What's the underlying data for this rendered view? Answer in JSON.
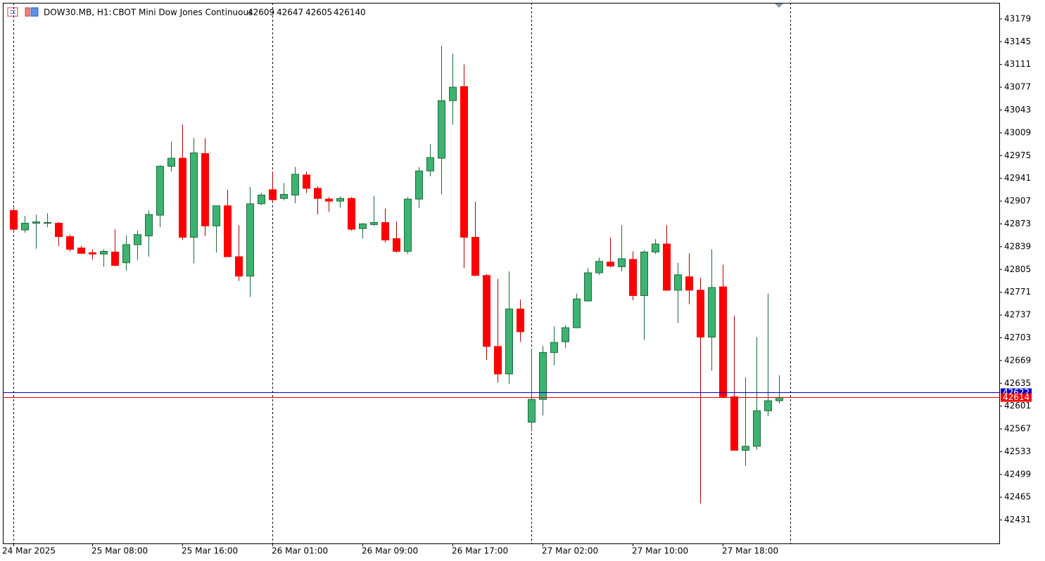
{
  "chart_data": {
    "type": "candlestick",
    "title": "DOW30.MB, H1:",
    "subtitle": "CBOT Mini Dow Jones Continuous",
    "header_values": [
      42609,
      42647,
      42605,
      42614,
      0
    ],
    "categories": [
      "24 Mar 2025",
      null,
      null,
      null,
      null,
      null,
      null,
      "25 Mar 08:00",
      null,
      null,
      null,
      null,
      null,
      null,
      null,
      "25 Mar 16:00",
      null,
      null,
      null,
      null,
      null,
      null,
      null,
      "26 Mar 01:00",
      null,
      null,
      null,
      null,
      null,
      null,
      null,
      "26 Mar 09:00",
      null,
      null,
      null,
      null,
      null,
      null,
      null,
      "26 Mar 17:00",
      null,
      null,
      null,
      null,
      null,
      null,
      null,
      "27 Mar 02:00",
      null,
      null,
      null,
      null,
      null,
      null,
      null,
      "27 Mar 10:00",
      null,
      null,
      null,
      null,
      null,
      null,
      null,
      "27 Mar 18:00",
      null,
      null,
      null,
      null,
      null
    ],
    "open": [
      42893,
      42864,
      42874,
      42874,
      42874,
      42854,
      42837,
      42830,
      42828,
      42831,
      42815,
      42842,
      42855,
      42886,
      42959,
      42971,
      42853,
      42978,
      42870,
      42900,
      42824,
      42795,
      42903,
      42924,
      42911,
      42916,
      42946,
      42926,
      42910,
      42907,
      42911,
      42866,
      42872,
      42875,
      42851,
      42832,
      42910,
      42952,
      42971,
      43057,
      43078,
      42853,
      42796,
      42690,
      42649,
      42746,
      42577,
      42611,
      42681,
      42697,
      42718,
      42758,
      42800,
      42816,
      42809,
      42820,
      42766,
      42831,
      42843,
      42774,
      42794,
      42774,
      42704,
      42779,
      42615,
      42535,
      42541,
      42594,
      42609
    ],
    "high": [
      42897,
      42885,
      42887,
      42889,
      42876,
      42857,
      42840,
      42835,
      42835,
      42865,
      42856,
      42863,
      42893,
      42961,
      42996,
      43021,
      43001,
      43001,
      42900,
      42924,
      42871,
      42928,
      42919,
      42951,
      42934,
      42958,
      42951,
      42929,
      42913,
      42914,
      42913,
      42874,
      42915,
      42896,
      42877,
      42913,
      42958,
      42992,
      43139,
      43127,
      43111,
      42906,
      42798,
      42791,
      42802,
      42760,
      42686,
      42691,
      42720,
      42722,
      42769,
      42807,
      42823,
      42853,
      42871,
      42832,
      42834,
      42850,
      42871,
      42815,
      42829,
      42793,
      42835,
      42812,
      42736,
      42644,
      42704,
      42769,
      42647
    ],
    "low": [
      42861,
      42860,
      42836,
      42868,
      42840,
      42832,
      42828,
      42820,
      42809,
      42810,
      42803,
      42819,
      42824,
      42868,
      42951,
      42849,
      42814,
      42855,
      42830,
      42824,
      42788,
      42764,
      42901,
      42905,
      42908,
      42904,
      42919,
      42887,
      42891,
      42897,
      42863,
      42851,
      42870,
      42845,
      42830,
      42828,
      42897,
      42944,
      42917,
      43021,
      42807,
      42795,
      42670,
      42636,
      42634,
      42697,
      42565,
      42587,
      42662,
      42688,
      42718,
      42757,
      42797,
      42808,
      42802,
      42759,
      42700,
      42828,
      42773,
      42725,
      42753,
      42456,
      42654,
      42613,
      42535,
      42512,
      42536,
      42586,
      42605
    ],
    "close": [
      42865,
      42874,
      42876,
      42875,
      42854,
      42835,
      42829,
      42828,
      42832,
      42811,
      42842,
      42857,
      42887,
      42959,
      42971,
      42853,
      42979,
      42870,
      42900,
      42824,
      42795,
      42903,
      42916,
      42909,
      42917,
      42947,
      42926,
      42911,
      42907,
      42911,
      42865,
      42873,
      42875,
      42849,
      42832,
      42910,
      42952,
      42972,
      43057,
      43077,
      42853,
      42796,
      42690,
      42649,
      42746,
      42712,
      42611,
      42681,
      42696,
      42718,
      42761,
      42800,
      42817,
      42810,
      42821,
      42766,
      42831,
      42843,
      42774,
      42797,
      42774,
      42704,
      42778,
      42615,
      42535,
      42541,
      42594,
      42609,
      42614
    ],
    "up_color": "#3cb371",
    "down_color": "#ff0000",
    "ylim": [
      42396,
      43203
    ],
    "yticks": [
      43179,
      43145,
      43111,
      43077,
      43043,
      43009,
      42975,
      42941,
      42907,
      42873,
      42839,
      42805,
      42771,
      42737,
      42703,
      42669,
      42635,
      42601,
      42567,
      42533,
      42499,
      42465,
      42431
    ],
    "ask_line": {
      "value": 42622,
      "label": "42622",
      "color": "#0000cd"
    },
    "bid_line": {
      "value": 42614,
      "label": "42614",
      "color": "#ff0000"
    }
  }
}
